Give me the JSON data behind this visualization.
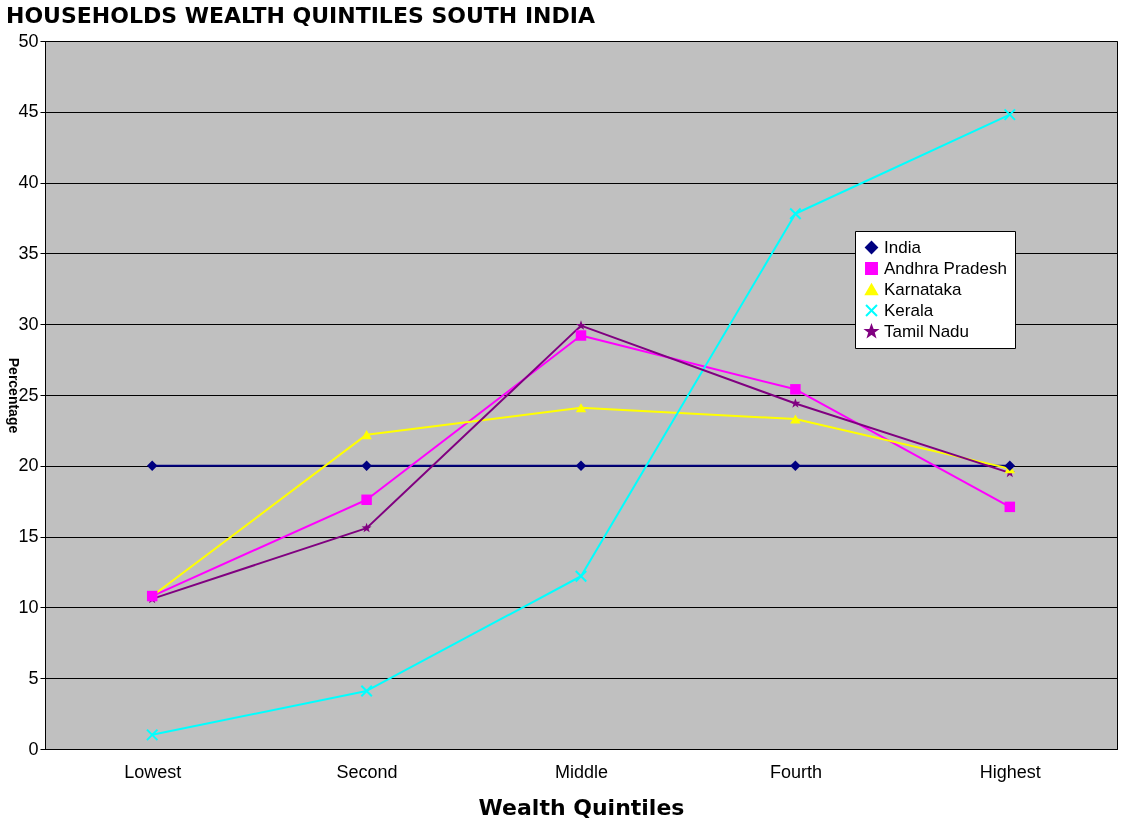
{
  "chart_data": {
    "type": "line",
    "title": "HOUSEHOLDS WEALTH QUINTILES SOUTH INDIA",
    "xlabel": "Wealth Quintiles",
    "ylabel": "Percentage",
    "categories": [
      "Lowest",
      "Second",
      "Middle",
      "Fourth",
      "Highest"
    ],
    "series": [
      {
        "name": "India",
        "color": "#000080",
        "marker": "diamond",
        "values": [
          20,
          20,
          20,
          20,
          20
        ]
      },
      {
        "name": "Andhra Pradesh",
        "color": "#ff00ff",
        "marker": "square",
        "values": [
          10.8,
          17.6,
          29.2,
          25.4,
          17.1
        ]
      },
      {
        "name": "Karnataka",
        "color": "#ffff00",
        "marker": "triangle",
        "values": [
          10.8,
          22.2,
          24.1,
          23.3,
          19.8
        ]
      },
      {
        "name": "Kerala",
        "color": "#00ffff",
        "marker": "cross",
        "values": [
          1.0,
          4.1,
          12.2,
          37.8,
          44.8
        ]
      },
      {
        "name": "Tamil Nadu",
        "color": "#800080",
        "marker": "star",
        "values": [
          10.6,
          15.6,
          29.9,
          24.4,
          19.5
        ]
      }
    ],
    "ylim": [
      0,
      50
    ],
    "yticks": [
      0,
      5,
      10,
      15,
      20,
      25,
      30,
      35,
      40,
      45,
      50
    ],
    "grid": "y",
    "legend": "top right"
  }
}
